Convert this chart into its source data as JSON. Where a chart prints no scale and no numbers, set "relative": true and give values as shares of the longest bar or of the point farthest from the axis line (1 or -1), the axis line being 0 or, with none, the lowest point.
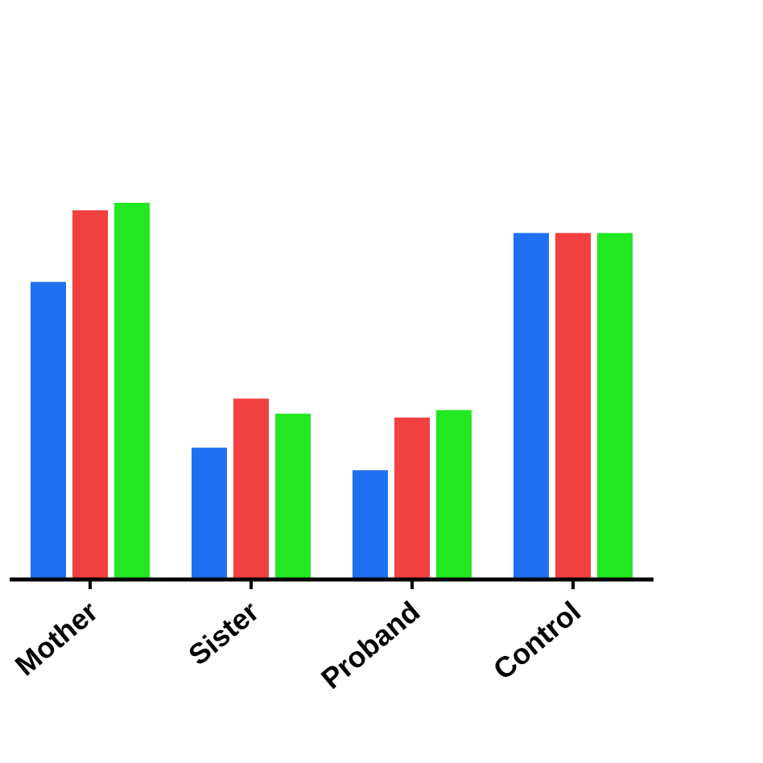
{
  "chart_data": {
    "type": "bar",
    "categories": [
      "Mother",
      "Sister",
      "Proband",
      "Control"
    ],
    "relative": true,
    "series": [
      {
        "color": "#1f6ff2",
        "values": [
          0.79,
          0.35,
          0.29,
          0.92
        ]
      },
      {
        "color": "#f23f3f",
        "values": [
          0.98,
          0.48,
          0.43,
          0.92
        ]
      },
      {
        "color": "#22e822",
        "values": [
          1,
          0.44,
          0.45,
          0.92
        ]
      }
    ]
  }
}
